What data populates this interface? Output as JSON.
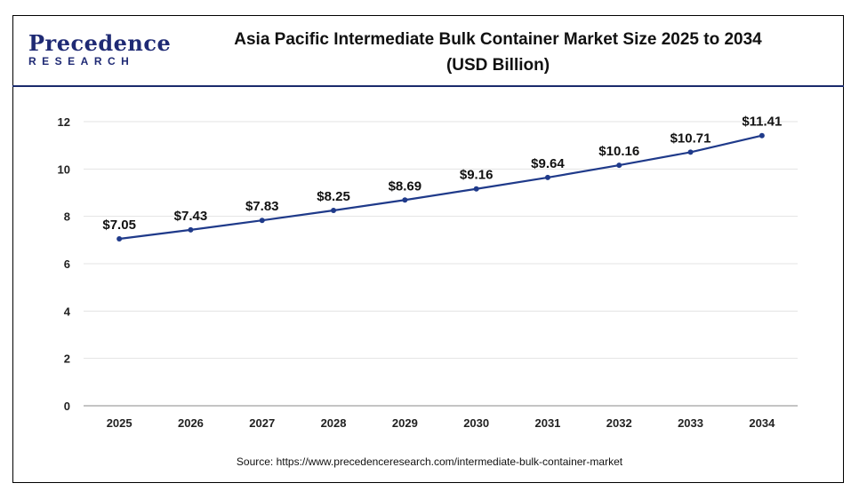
{
  "brand": {
    "name": "Precedence",
    "sub": "RESEARCH"
  },
  "title_line1": "Asia Pacific Intermediate Bulk Container Market Size 2025 to 2034",
  "title_line2": "(USD Billion)",
  "source": "Source: https://www.precedenceresearch.com/intermediate-bulk-container-market",
  "colors": {
    "line": "#1f3a8a",
    "point": "#1f3a8a",
    "grid": "#e3e3e3",
    "axis": "#888888"
  },
  "chart_data": {
    "type": "line",
    "title": "Asia Pacific Intermediate Bulk Container Market Size 2025 to 2034 (USD Billion)",
    "xlabel": "",
    "ylabel": "",
    "categories": [
      "2025",
      "2026",
      "2027",
      "2028",
      "2029",
      "2030",
      "2031",
      "2032",
      "2033",
      "2034"
    ],
    "values": [
      7.05,
      7.43,
      7.83,
      8.25,
      8.69,
      9.16,
      9.64,
      10.16,
      10.71,
      11.41
    ],
    "data_labels": [
      "$7.05",
      "$7.43",
      "$7.83",
      "$8.25",
      "$8.69",
      "$9.16",
      "$9.64",
      "$10.16",
      "$10.71",
      "$11.41"
    ],
    "ylim": [
      0,
      12
    ],
    "yticks": [
      "0",
      "2",
      "4",
      "6",
      "8",
      "10",
      "12"
    ],
    "grid": true,
    "legend": "none"
  }
}
